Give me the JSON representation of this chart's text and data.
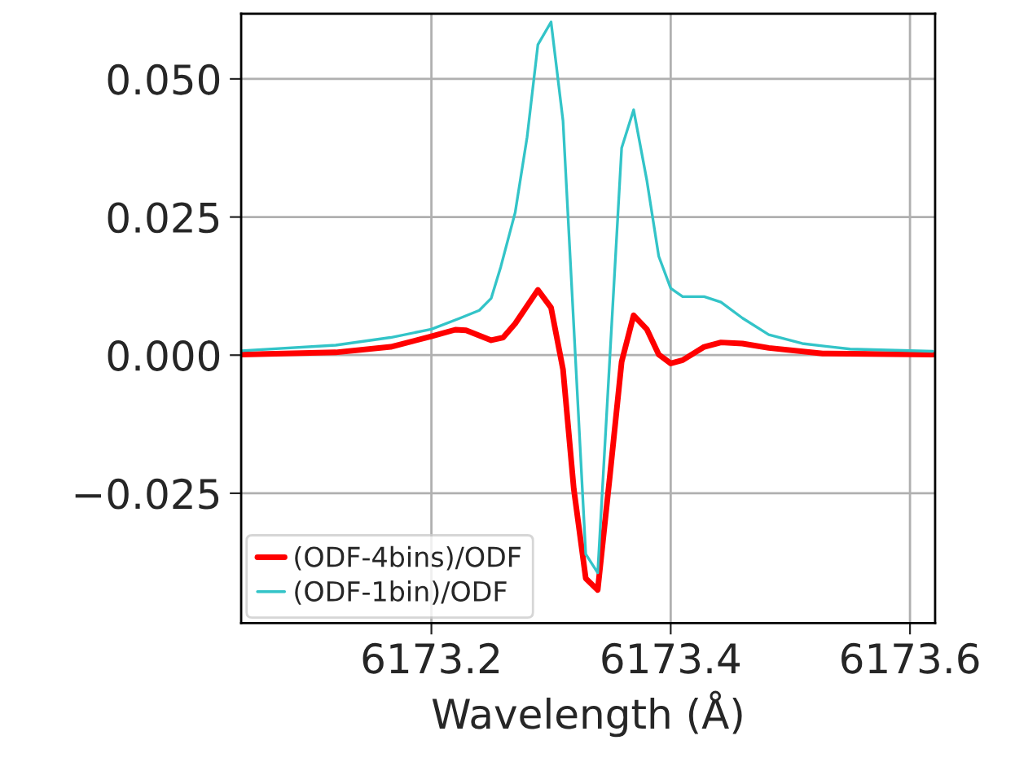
{
  "chart_data": {
    "type": "line",
    "xlabel": "Wavelength (Å)",
    "xlim": [
      6173.041,
      6173.621
    ],
    "xticks": [
      6173.2,
      6173.4,
      6173.6
    ],
    "ylim": [
      -0.0485,
      0.0618
    ],
    "yticks": [
      {
        "value": -0.025,
        "label": "−0.025"
      },
      {
        "value": 0.0,
        "label": "0.000"
      },
      {
        "value": 0.025,
        "label": "0.025"
      },
      {
        "value": 0.05,
        "label": "0.050"
      }
    ],
    "grid": true,
    "legend": "bottom left",
    "line_style": "solid",
    "marker": "none",
    "series": [
      {
        "name": "(ODF-4bins)/ODF",
        "color": "#ff0000",
        "x": [
          6173.041,
          6173.12,
          6173.166,
          6173.2,
          6173.22,
          6173.229,
          6173.25,
          6173.26,
          6173.27,
          6173.289,
          6173.3,
          6173.31,
          6173.319,
          6173.329,
          6173.339,
          6173.349,
          6173.359,
          6173.369,
          6173.38,
          6173.39,
          6173.4,
          6173.41,
          6173.428,
          6173.442,
          6173.46,
          6173.482,
          6173.527,
          6173.619
        ],
        "values": [
          0.0001,
          0.0005,
          0.0015,
          0.0034,
          0.0046,
          0.0045,
          0.0027,
          0.0032,
          0.0057,
          0.0118,
          0.0086,
          -0.0026,
          -0.0242,
          -0.0404,
          -0.0425,
          -0.0222,
          -0.0012,
          0.0072,
          0.0047,
          0.0001,
          -0.0015,
          -0.0009,
          0.0015,
          0.0023,
          0.0021,
          0.0013,
          0.0003,
          0.0001
        ]
      },
      {
        "name": "(ODF-1bin)/ODF",
        "color": "#33c4c8",
        "x": [
          6173.041,
          6173.12,
          6173.166,
          6173.2,
          6173.224,
          6173.24,
          6173.25,
          6173.258,
          6173.27,
          6173.28,
          6173.289,
          6173.3,
          6173.31,
          6173.329,
          6173.339,
          6173.359,
          6173.369,
          6173.38,
          6173.39,
          6173.4,
          6173.41,
          6173.428,
          6173.442,
          6173.46,
          6173.482,
          6173.51,
          6173.55,
          6173.619
        ],
        "values": [
          0.0008,
          0.0018,
          0.0032,
          0.0047,
          0.0067,
          0.0081,
          0.0103,
          0.016,
          0.0258,
          0.0395,
          0.0562,
          0.0603,
          0.0424,
          -0.036,
          -0.0394,
          0.0375,
          0.0444,
          0.0317,
          0.0179,
          0.0121,
          0.0106,
          0.0106,
          0.0096,
          0.0067,
          0.0037,
          0.0021,
          0.0011,
          0.0007
        ]
      }
    ]
  }
}
